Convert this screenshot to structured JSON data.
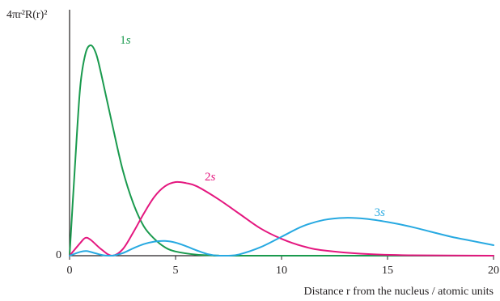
{
  "chart_data": {
    "type": "line",
    "title": "",
    "ylabel": "4πr²R(r)²",
    "xlabel": "Distance r from the nucleus / atomic units",
    "xlim": [
      0,
      20
    ],
    "ylim": [
      0,
      1
    ],
    "x_ticks": [
      0,
      5,
      10,
      15,
      20
    ],
    "y_ticks": [
      0
    ],
    "grid": false,
    "legend": "inline labels",
    "series": [
      {
        "name": "1s",
        "color": "#1a9a4e",
        "x": [
          0,
          0.25,
          0.5,
          0.75,
          1.0,
          1.25,
          1.5,
          2.0,
          2.5,
          3.0,
          3.5,
          4.0,
          4.5,
          5.0,
          6.0,
          7.0,
          8.0,
          20
        ],
        "y": [
          0,
          0.42,
          0.8,
          0.96,
          1.0,
          0.96,
          0.86,
          0.63,
          0.41,
          0.25,
          0.14,
          0.08,
          0.04,
          0.02,
          0.005,
          0.001,
          0,
          0
        ]
      },
      {
        "name": "2s",
        "color": "#e4177f",
        "x": [
          0,
          0.5,
          0.75,
          1.0,
          1.5,
          2.0,
          2.5,
          3.0,
          3.5,
          4.0,
          4.5,
          5.0,
          5.5,
          6.0,
          7.0,
          8.0,
          9.0,
          10.0,
          11.0,
          12.0,
          14.0,
          16.0,
          20.0
        ],
        "y": [
          0,
          0.06,
          0.085,
          0.075,
          0.03,
          0.0,
          0.03,
          0.11,
          0.2,
          0.28,
          0.33,
          0.35,
          0.345,
          0.33,
          0.27,
          0.2,
          0.13,
          0.08,
          0.045,
          0.025,
          0.008,
          0.002,
          0
        ]
      },
      {
        "name": "3s",
        "color": "#27a9e1",
        "x": [
          0,
          0.5,
          0.8,
          1.2,
          1.6,
          2.0,
          2.5,
          3.0,
          3.5,
          4.0,
          4.5,
          5.0,
          5.5,
          6.0,
          6.5,
          7.0,
          7.5,
          8.0,
          9.0,
          10.0,
          11.0,
          12.0,
          13.0,
          14.0,
          15.0,
          16.0,
          17.0,
          18.0,
          19.0,
          20.0
        ],
        "y": [
          0,
          0.018,
          0.022,
          0.012,
          0.002,
          0.0,
          0.012,
          0.035,
          0.055,
          0.067,
          0.07,
          0.062,
          0.045,
          0.025,
          0.008,
          0.0,
          0.0,
          0.006,
          0.04,
          0.09,
          0.14,
          0.17,
          0.18,
          0.175,
          0.16,
          0.14,
          0.115,
          0.09,
          0.07,
          0.05
        ]
      }
    ]
  }
}
